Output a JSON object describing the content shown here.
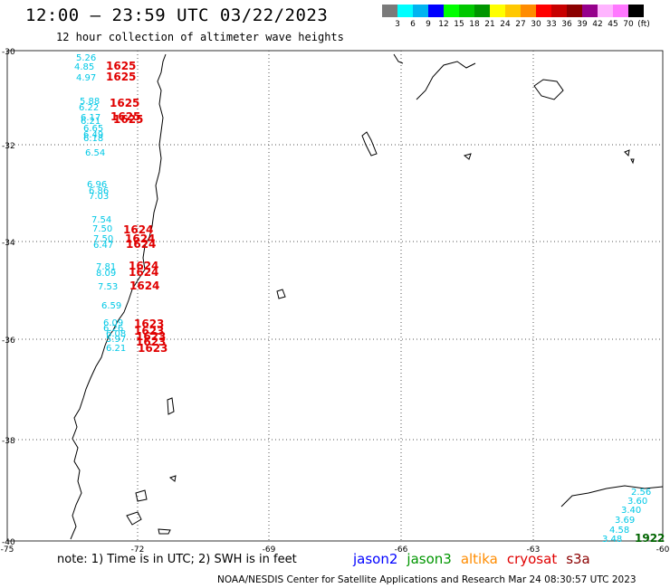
{
  "header": {
    "title": "12:00 – 23:59 UTC 03/22/2023",
    "subtitle": "12 hour collection of altimeter wave heights"
  },
  "color_scale": {
    "colors": [
      "#7a7a7a",
      "#00ffff",
      "#00b4f0",
      "#0000ff",
      "#00ff00",
      "#00c800",
      "#009600",
      "#ffff00",
      "#ffc800",
      "#ff8c00",
      "#ff0000",
      "#c80000",
      "#8b0000",
      "#96008c",
      "#ffb4ff",
      "#ff78ff",
      "#000000"
    ],
    "labels": [
      "3",
      "6",
      "9",
      "12",
      "15",
      "18",
      "21",
      "24",
      "27",
      "30",
      "33",
      "36",
      "39",
      "42",
      "45",
      "70",
      "(ft)"
    ]
  },
  "axes": {
    "lat_labels": [
      "-30",
      "-32",
      "-34",
      "-36",
      "-38",
      "-40"
    ],
    "lon_labels": [
      "-75",
      "-72",
      "-69",
      "-66",
      "-63",
      "-60"
    ]
  },
  "wave_heights": [
    {
      "value": "5.26",
      "time": "",
      "color": "#00c8e6"
    },
    {
      "value": "4.85",
      "time": "1625",
      "color": "#00c8e6"
    },
    {
      "value": "4.97",
      "time": "1625",
      "color": "#00c8e6"
    },
    {
      "value": "5.88",
      "time": "",
      "color": "#00c8e6"
    },
    {
      "value": "6.22",
      "time": "1625",
      "color": "#00c8e6"
    },
    {
      "value": "6.17",
      "time": "1625",
      "color": "#00c8e6"
    },
    {
      "value": "6.21",
      "time": "1625",
      "color": "#00c8e6"
    },
    {
      "value": "6.65",
      "time": "",
      "color": "#00c8e6"
    },
    {
      "value": "6.49",
      "time": "",
      "color": "#00c8e6"
    },
    {
      "value": "6.18",
      "time": "",
      "color": "#00c8e6"
    },
    {
      "value": "6.54",
      "time": "",
      "color": "#00c8e6"
    },
    {
      "value": "6.96",
      "time": "",
      "color": "#00c8e6"
    },
    {
      "value": "6.86",
      "time": "",
      "color": "#00c8e6"
    },
    {
      "value": "7.03",
      "time": "",
      "color": "#00c8e6"
    },
    {
      "value": "7.54",
      "time": "",
      "color": "#00c8e6"
    },
    {
      "value": "7.50",
      "time": "1624",
      "color": "#00c8e6"
    },
    {
      "value": "7.50",
      "time": "1624",
      "color": "#00c8e6"
    },
    {
      "value": "6.47",
      "time": "1624",
      "color": "#00c8e6"
    },
    {
      "value": "7.81",
      "time": "1624",
      "color": "#00c8e6"
    },
    {
      "value": "8.09",
      "time": "1624",
      "color": "#00c8e6"
    },
    {
      "value": "7.53",
      "time": "1624",
      "color": "#00c8e6"
    },
    {
      "value": "6.59",
      "time": "",
      "color": "#00c8e6"
    },
    {
      "value": "6.09",
      "time": "1623",
      "color": "#00c8e6"
    },
    {
      "value": "6.26",
      "time": "1623",
      "color": "#00c8e6"
    },
    {
      "value": "6.08",
      "time": "1623",
      "color": "#00c8e6"
    },
    {
      "value": "5.97",
      "time": "1623",
      "color": "#00c8e6"
    },
    {
      "value": "6.21",
      "time": "1623",
      "color": "#00c8e6"
    },
    {
      "value": "2.56",
      "time": "",
      "color": "#00c8e6"
    },
    {
      "value": "3.60",
      "time": "",
      "color": "#00c8e6"
    },
    {
      "value": "3.40",
      "time": "",
      "color": "#00c8e6"
    },
    {
      "value": "3.69",
      "time": "",
      "color": "#00c8e6"
    },
    {
      "value": "4.58",
      "time": "",
      "color": "#00c8e6"
    },
    {
      "value": "3.48",
      "time": "1922",
      "color": "#00c8e6"
    }
  ],
  "time_color": "#e00000",
  "time_color_alt": "#006400",
  "note": "note:  1) Time is in UTC;  2) SWH is in feet",
  "satellites": [
    {
      "name": "jason2",
      "color": "#0000ff"
    },
    {
      "name": "jason3",
      "color": "#009600"
    },
    {
      "name": "altika",
      "color": "#ff8c00"
    },
    {
      "name": "cryosat",
      "color": "#e00000"
    },
    {
      "name": "s3a",
      "color": "#8b0000"
    }
  ],
  "footer": "NOAA/NESDIS Center for Satellite Applications and Research    Mar 24 08:30:57 UTC 2023"
}
